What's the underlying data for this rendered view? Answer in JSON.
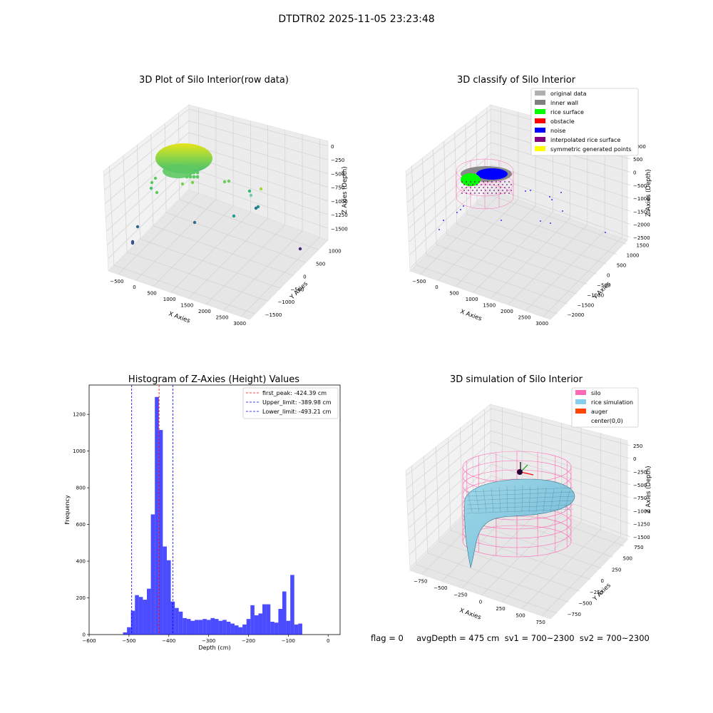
{
  "suptitle": "DTDTR02 2025-11-05 23:23:48",
  "footer_text": "flag = 0     avgDepth = 475 cm  sv1 = 700~2300  sv2 = 700~2300",
  "chart_data": [
    {
      "type": "scatter",
      "title": "3D Plot of Silo Interior(row data)",
      "xlabel": "X Axies",
      "ylabel": "Y Axies",
      "zlabel": "Z Axies (Depth)",
      "x_ticks": [
        "−500",
        "0",
        "500",
        "1000",
        "1500",
        "2000",
        "2500",
        "3000"
      ],
      "y_ticks": [
        "1000",
        "500",
        "0",
        "−500",
        "−1000",
        "−1500"
      ],
      "z_ticks": [
        "0",
        "−250",
        "−500",
        "−750",
        "−1000",
        "−1250",
        "−1500"
      ],
      "colormap": "viridis"
    },
    {
      "type": "scatter",
      "title": "3D classify of Silo Interior",
      "xlabel": "X Axies",
      "ylabel": "Y Axies",
      "zlabel": "Z Axies (Depth)",
      "x_ticks": [
        "−500",
        "0",
        "500",
        "1000",
        "1500",
        "2000",
        "2500",
        "3000"
      ],
      "y_ticks": [
        "1500",
        "1000",
        "500",
        "0",
        "−500",
        "−1000",
        "−1500",
        "−2000"
      ],
      "z_ticks": [
        "1000",
        "500",
        "0",
        "−500",
        "−1000",
        "−1500",
        "−2000",
        "−2500"
      ],
      "legend": [
        {
          "label": "original data",
          "color": "#b0b0b0"
        },
        {
          "label": "inner wall",
          "color": "#808080"
        },
        {
          "label": "rice surface",
          "color": "#00ff00"
        },
        {
          "label": "obstacle",
          "color": "#ff0000"
        },
        {
          "label": "noise",
          "color": "#0000ff"
        },
        {
          "label": "interpolated rice surface",
          "color": "#800080"
        },
        {
          "label": "symmetric generated points",
          "color": "#ffff00"
        }
      ]
    },
    {
      "type": "bar",
      "title": "Histogram of Z-Axies (Height) Values",
      "xlabel": "Depth (cm)",
      "ylabel": "Frequency",
      "xlim": [
        -600,
        30
      ],
      "ylim": [
        0,
        1360
      ],
      "x_ticks": [
        -600,
        -500,
        -400,
        -300,
        -200,
        -100,
        0
      ],
      "y_ticks": [
        0,
        200,
        400,
        600,
        800,
        1000,
        1200
      ],
      "bar_color": "#0000ff",
      "bins": [
        {
          "x0": -515,
          "x1": -505,
          "count": 12
        },
        {
          "x0": -505,
          "x1": -495,
          "count": 40
        },
        {
          "x0": -495,
          "x1": -485,
          "count": 130
        },
        {
          "x0": -485,
          "x1": -475,
          "count": 215
        },
        {
          "x0": -475,
          "x1": -465,
          "count": 205
        },
        {
          "x0": -465,
          "x1": -455,
          "count": 190
        },
        {
          "x0": -455,
          "x1": -445,
          "count": 250
        },
        {
          "x0": -445,
          "x1": -435,
          "count": 655
        },
        {
          "x0": -435,
          "x1": -425,
          "count": 1295
        },
        {
          "x0": -425,
          "x1": -415,
          "count": 1115
        },
        {
          "x0": -415,
          "x1": -405,
          "count": 480
        },
        {
          "x0": -405,
          "x1": -395,
          "count": 405
        },
        {
          "x0": -395,
          "x1": -385,
          "count": 180
        },
        {
          "x0": -385,
          "x1": -375,
          "count": 145
        },
        {
          "x0": -375,
          "x1": -365,
          "count": 125
        },
        {
          "x0": -365,
          "x1": -355,
          "count": 90
        },
        {
          "x0": -355,
          "x1": -345,
          "count": 85
        },
        {
          "x0": -345,
          "x1": -335,
          "count": 75
        },
        {
          "x0": -335,
          "x1": -325,
          "count": 80
        },
        {
          "x0": -325,
          "x1": -315,
          "count": 80
        },
        {
          "x0": -315,
          "x1": -305,
          "count": 85
        },
        {
          "x0": -305,
          "x1": -295,
          "count": 80
        },
        {
          "x0": -295,
          "x1": -285,
          "count": 90
        },
        {
          "x0": -285,
          "x1": -275,
          "count": 85
        },
        {
          "x0": -275,
          "x1": -265,
          "count": 75
        },
        {
          "x0": -265,
          "x1": -255,
          "count": 80
        },
        {
          "x0": -255,
          "x1": -245,
          "count": 70
        },
        {
          "x0": -245,
          "x1": -235,
          "count": 60
        },
        {
          "x0": -235,
          "x1": -225,
          "count": 50
        },
        {
          "x0": -225,
          "x1": -215,
          "count": 40
        },
        {
          "x0": -215,
          "x1": -205,
          "count": 55
        },
        {
          "x0": -205,
          "x1": -195,
          "count": 85
        },
        {
          "x0": -195,
          "x1": -185,
          "count": 160
        },
        {
          "x0": -185,
          "x1": -175,
          "count": 105
        },
        {
          "x0": -175,
          "x1": -165,
          "count": 115
        },
        {
          "x0": -165,
          "x1": -155,
          "count": 165
        },
        {
          "x0": -155,
          "x1": -145,
          "count": 165
        },
        {
          "x0": -145,
          "x1": -135,
          "count": 70
        },
        {
          "x0": -135,
          "x1": -125,
          "count": 65
        },
        {
          "x0": -125,
          "x1": -115,
          "count": 140
        },
        {
          "x0": -115,
          "x1": -105,
          "count": 235
        },
        {
          "x0": -105,
          "x1": -95,
          "count": 75
        },
        {
          "x0": -95,
          "x1": -85,
          "count": 325
        },
        {
          "x0": -85,
          "x1": -75,
          "count": 55
        },
        {
          "x0": -75,
          "x1": -65,
          "count": 60
        }
      ],
      "vlines": [
        {
          "label": "first_peak: -424.39 cm",
          "x": -424.39,
          "color": "#ff0000"
        },
        {
          "label": "Upper_limit: -389.98 cm",
          "x": -389.98,
          "color": "#0000ff"
        },
        {
          "label": "Lower_limit: -493.21 cm",
          "x": -493.21,
          "color": "#0000ff"
        }
      ]
    },
    {
      "type": "surface",
      "title": "3D simulation of Silo Interior",
      "xlabel": "X Axies",
      "ylabel": "Y Axies",
      "zlabel": "Z Axies (Depth)",
      "x_ticks": [
        "−750",
        "−500",
        "−250",
        "0",
        "250",
        "500",
        "750"
      ],
      "y_ticks": [
        "750",
        "500",
        "250",
        "0",
        "−250",
        "−500",
        "−750"
      ],
      "z_ticks": [
        "250",
        "0",
        "−250",
        "−500",
        "−750",
        "−1000",
        "−1250",
        "−1500"
      ],
      "legend": [
        {
          "label": "silo",
          "color": "#ff69b4"
        },
        {
          "label": "rice simulation",
          "color": "#87ceeb"
        },
        {
          "label": "auger",
          "color": "#ff4500"
        },
        {
          "label": "center(0,0)",
          "color": "#ffffff"
        }
      ]
    }
  ]
}
